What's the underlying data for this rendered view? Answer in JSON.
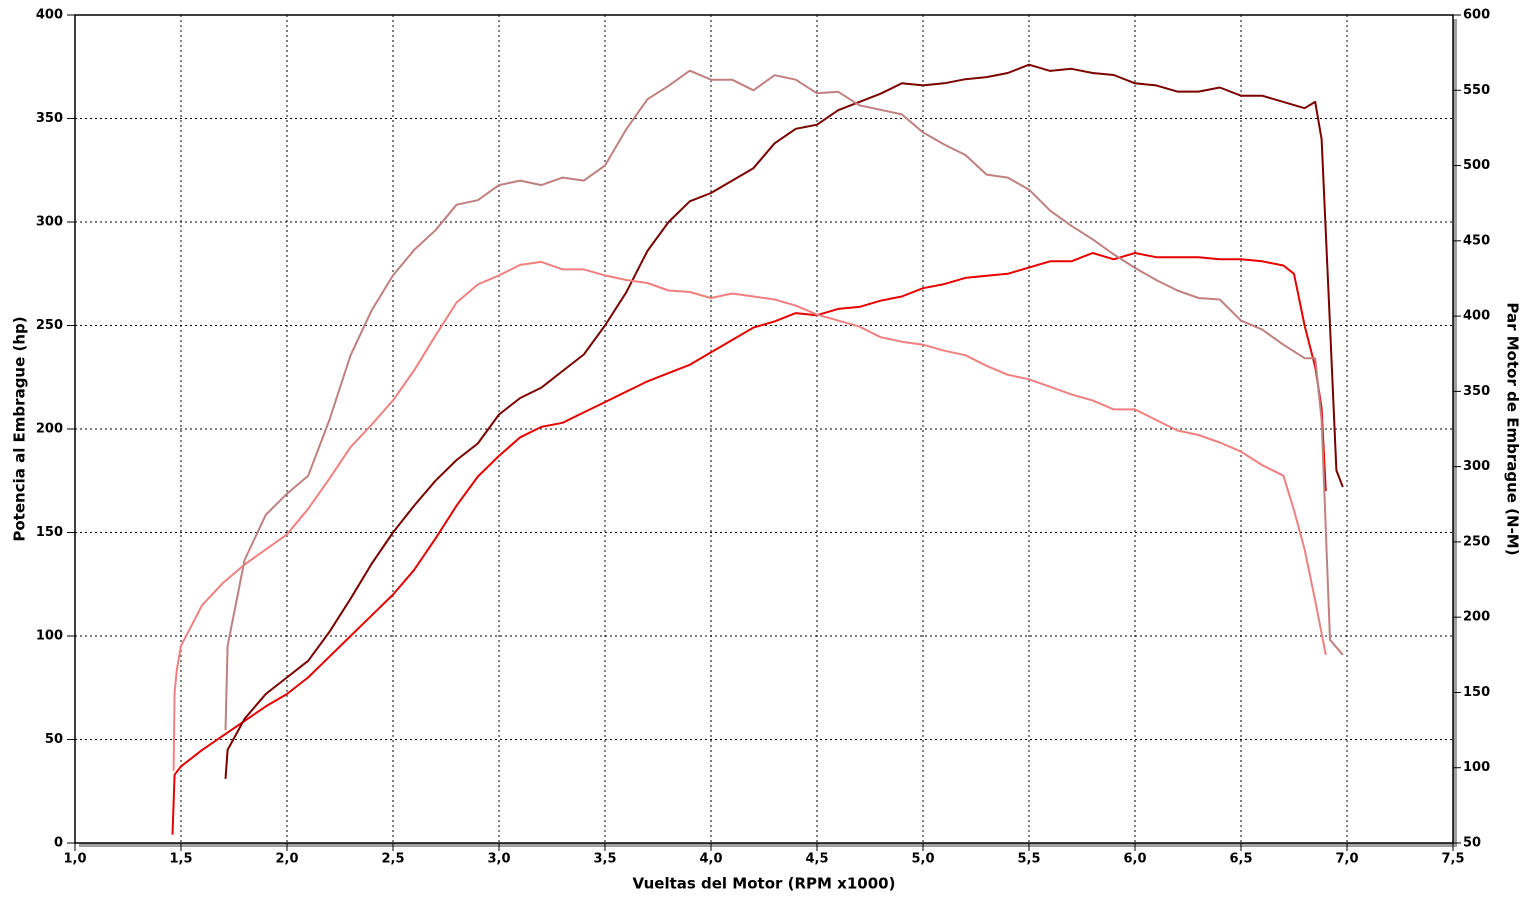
{
  "chart_data": {
    "type": "line",
    "xlabel": "Vueltas del Motor (RPM x1000)",
    "ylabel": "Potencia al Embrague (hp)",
    "y2label": "Par Motor de Embrague (N-M)",
    "xlim": [
      1,
      7.5
    ],
    "ylim": [
      0,
      400
    ],
    "y2lim": [
      50,
      600
    ],
    "grid": true,
    "xticks": [
      {
        "value": 1,
        "label": "1,0"
      },
      {
        "value": 1.5,
        "label": "1,5"
      },
      {
        "value": 2,
        "label": "2,0"
      },
      {
        "value": 2.5,
        "label": "2,5"
      },
      {
        "value": 3,
        "label": "3,0"
      },
      {
        "value": 3.5,
        "label": "3,5"
      },
      {
        "value": 4,
        "label": "4,0"
      },
      {
        "value": 4.5,
        "label": "4,5"
      },
      {
        "value": 5,
        "label": "5,0"
      },
      {
        "value": 5.5,
        "label": "5,5"
      },
      {
        "value": 6,
        "label": "6,0"
      },
      {
        "value": 6.5,
        "label": "6,5"
      },
      {
        "value": 7,
        "label": "7,0"
      },
      {
        "value": 7.5,
        "label": "7,5"
      }
    ],
    "yticks": [
      0,
      50,
      100,
      150,
      200,
      250,
      300,
      350,
      400
    ],
    "y2ticks": [
      50,
      100,
      150,
      200,
      250,
      300,
      350,
      400,
      450,
      500,
      550,
      600
    ],
    "series": [
      {
        "color": "#e60000",
        "x": [
          1.46,
          1.47,
          1.5,
          1.6,
          1.7,
          1.8,
          1.9,
          2.0,
          2.1,
          2.2,
          2.3,
          2.4,
          2.5,
          2.6,
          2.7,
          2.8,
          2.9,
          3.0,
          3.1,
          3.2,
          3.3,
          3.4,
          3.5,
          3.6,
          3.7,
          3.8,
          3.9,
          4.0,
          4.1,
          4.2,
          4.3,
          4.4,
          4.5,
          4.6,
          4.7,
          4.8,
          4.9,
          5.0,
          5.1,
          5.2,
          5.3,
          5.4,
          5.5,
          5.6,
          5.7,
          5.8,
          5.9,
          6.0,
          6.1,
          6.2,
          6.3,
          6.4,
          6.5,
          6.6,
          6.7,
          6.75,
          6.8,
          6.85,
          6.88,
          6.9
        ],
        "values": [
          4,
          33,
          37,
          45,
          52,
          59,
          66,
          72,
          80,
          90,
          100,
          110,
          120,
          132,
          147,
          163,
          177,
          187,
          196,
          201,
          203,
          208,
          213,
          218,
          223,
          227,
          231,
          237,
          243,
          249,
          252,
          256,
          255,
          258,
          259,
          262,
          264,
          268,
          270,
          273,
          274,
          275,
          278,
          281,
          281,
          285,
          282,
          285,
          283,
          283,
          283,
          282,
          282,
          281,
          279,
          275,
          250,
          230,
          210,
          170
        ]
      },
      {
        "color": "#7a0000",
        "x": [
          1.71,
          1.72,
          1.8,
          1.9,
          2.0,
          2.1,
          2.2,
          2.3,
          2.4,
          2.5,
          2.6,
          2.7,
          2.8,
          2.9,
          3.0,
          3.1,
          3.2,
          3.3,
          3.4,
          3.5,
          3.6,
          3.7,
          3.8,
          3.9,
          4.0,
          4.1,
          4.2,
          4.3,
          4.4,
          4.5,
          4.6,
          4.7,
          4.8,
          4.9,
          5.0,
          5.1,
          5.2,
          5.3,
          5.4,
          5.5,
          5.6,
          5.7,
          5.8,
          5.9,
          6.0,
          6.1,
          6.2,
          6.3,
          6.4,
          6.5,
          6.6,
          6.7,
          6.8,
          6.85,
          6.88,
          6.92,
          6.95,
          6.98
        ],
        "values": [
          31,
          45,
          60,
          72,
          80,
          88,
          102,
          118,
          135,
          150,
          163,
          175,
          185,
          193,
          207,
          215,
          220,
          228,
          236,
          250,
          266,
          286,
          300,
          310,
          314,
          320,
          326,
          338,
          345,
          347,
          354,
          358,
          362,
          367,
          366,
          367,
          369,
          370,
          372,
          376,
          373,
          374,
          372,
          371,
          367,
          366,
          363,
          363,
          365,
          361,
          361,
          358,
          355,
          358,
          340,
          250,
          180,
          172
        ]
      },
      {
        "color": "#f08080",
        "axis": "y2",
        "x": [
          1.465,
          1.47,
          1.48,
          1.5,
          1.6,
          1.7,
          1.8,
          1.9,
          2.0,
          2.1,
          2.2,
          2.3,
          2.4,
          2.5,
          2.6,
          2.7,
          2.8,
          2.9,
          3.0,
          3.1,
          3.2,
          3.3,
          3.4,
          3.5,
          3.6,
          3.7,
          3.8,
          3.9,
          4.0,
          4.1,
          4.2,
          4.3,
          4.4,
          4.5,
          4.6,
          4.7,
          4.8,
          4.9,
          5.0,
          5.1,
          5.2,
          5.3,
          5.4,
          5.5,
          5.6,
          5.7,
          5.8,
          5.9,
          6.0,
          6.1,
          6.2,
          6.3,
          6.4,
          6.5,
          6.6,
          6.7,
          6.75,
          6.8,
          6.85,
          6.9
        ],
        "values": [
          98,
          150,
          165,
          181,
          208,
          223,
          235,
          245,
          255,
          272,
          292,
          313,
          328,
          344,
          364,
          387,
          409,
          421,
          427,
          434,
          436,
          431,
          431,
          427,
          424,
          422,
          417,
          416,
          412,
          415,
          413,
          411,
          407,
          401,
          397,
          393,
          386,
          383,
          381,
          377,
          374,
          367,
          361,
          358,
          353,
          348,
          344,
          338,
          338,
          331,
          324,
          321,
          316,
          310,
          301,
          294,
          271,
          245,
          211,
          175
        ]
      },
      {
        "color": "#c08080",
        "axis": "y2",
        "x": [
          1.71,
          1.72,
          1.8,
          1.9,
          2.0,
          2.1,
          2.2,
          2.3,
          2.4,
          2.5,
          2.6,
          2.7,
          2.8,
          2.9,
          3.0,
          3.1,
          3.2,
          3.3,
          3.4,
          3.5,
          3.6,
          3.7,
          3.8,
          3.9,
          4.0,
          4.1,
          4.2,
          4.3,
          4.4,
          4.5,
          4.6,
          4.7,
          4.8,
          4.9,
          5.0,
          5.1,
          5.2,
          5.3,
          5.4,
          5.5,
          5.6,
          5.7,
          5.8,
          5.9,
          6.0,
          6.1,
          6.2,
          6.3,
          6.4,
          6.5,
          6.6,
          6.7,
          6.8,
          6.85,
          6.88,
          6.92,
          6.98
        ],
        "values": [
          125,
          181,
          238,
          268,
          282,
          294,
          331,
          374,
          404,
          427,
          444,
          457,
          474,
          477,
          487,
          490,
          487,
          492,
          490,
          500,
          524,
          544,
          553,
          563,
          557,
          557,
          550,
          560,
          557,
          548,
          549,
          540,
          537,
          534,
          522,
          514,
          507,
          494,
          492,
          484,
          470,
          460,
          451,
          441,
          432,
          424,
          417,
          412,
          411,
          397,
          391,
          381,
          372,
          372,
          331,
          185,
          175
        ]
      }
    ]
  }
}
